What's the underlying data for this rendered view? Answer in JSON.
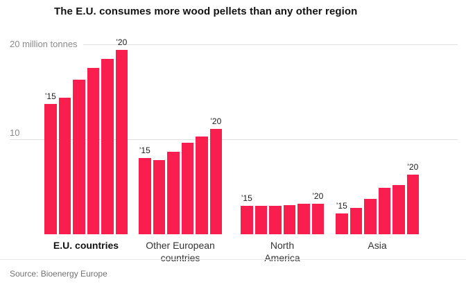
{
  "title": "The E.U. consumes more wood pellets than any other region",
  "source": "Source: Bioenergy Europe",
  "chart_data": {
    "type": "bar",
    "title": "The E.U. consumes more wood pellets than any other region",
    "unit_axis_label": "20 million tonnes",
    "mid_gridline_label": "10",
    "ylim": [
      0,
      20
    ],
    "gridlines": [
      20,
      10
    ],
    "years": [
      "2015",
      "2016",
      "2017",
      "2018",
      "2019",
      "2020"
    ],
    "first_year_label": "’15",
    "last_year_label": "’20",
    "bar_color": "#fa1e4e",
    "groups": [
      {
        "label_lines": [
          "E.U. countries"
        ],
        "bold": true,
        "values": [
          13.7,
          14.4,
          16.3,
          17.5,
          18.5,
          19.4
        ]
      },
      {
        "label_lines": [
          "Other European",
          "countries"
        ],
        "bold": false,
        "values": [
          8.0,
          7.8,
          8.7,
          9.6,
          10.3,
          11.1
        ]
      },
      {
        "label_lines": [
          "North",
          "America"
        ],
        "bold": false,
        "values": [
          3.0,
          3.0,
          3.0,
          3.1,
          3.2,
          3.2
        ]
      },
      {
        "label_lines": [
          "Asia"
        ],
        "bold": false,
        "values": [
          2.2,
          2.8,
          3.7,
          4.9,
          5.2,
          6.3
        ]
      }
    ],
    "source": "Source: Bioenergy Europe"
  }
}
